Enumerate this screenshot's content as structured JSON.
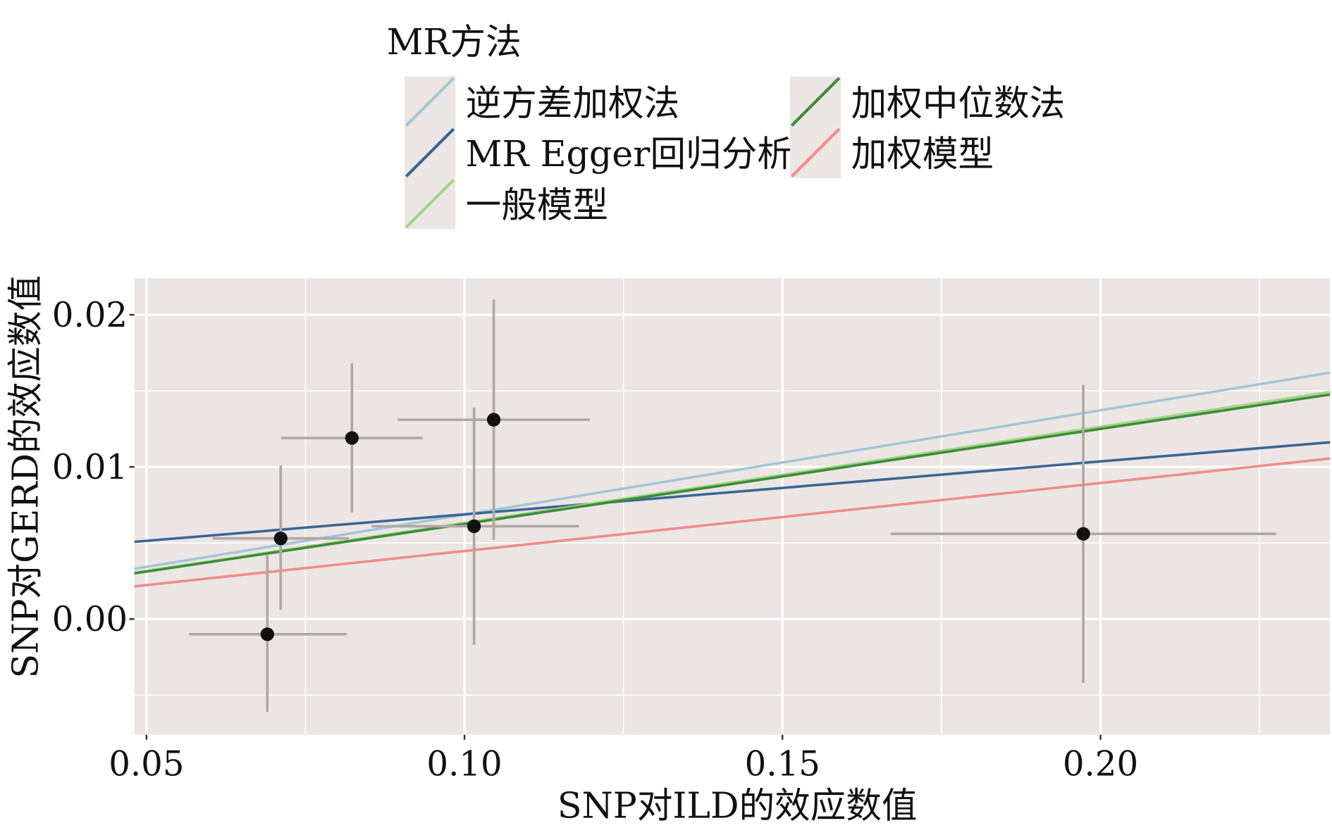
{
  "chart_data": {
    "type": "scatter",
    "title": "",
    "xlabel": "SNP对ILD的效应数值",
    "ylabel": "SNP对GERD的效应数值",
    "xlim": [
      0.0481,
      0.2361
    ],
    "ylim": [
      -0.0076,
      0.0224
    ],
    "xticks": [
      {
        "value": 0.05,
        "label": "0.05"
      },
      {
        "value": 0.1,
        "label": "0.10"
      },
      {
        "value": 0.15,
        "label": "0.15"
      },
      {
        "value": 0.2,
        "label": "0.20"
      }
    ],
    "yticks": [
      {
        "value": 0.0,
        "label": "0.00"
      },
      {
        "value": 0.01,
        "label": "0.01"
      },
      {
        "value": 0.02,
        "label": "0.02"
      }
    ],
    "minor_x": [
      0.075,
      0.125,
      0.175,
      0.225
    ],
    "minor_y": [
      -0.005,
      0.005,
      0.015
    ],
    "grid": true,
    "points": [
      {
        "x": 0.069,
        "y": -0.001,
        "xmin": 0.0567,
        "xmax": 0.0815,
        "ymin": -0.0061,
        "ymax": 0.0042
      },
      {
        "x": 0.0711,
        "y": 0.0053,
        "xmin": 0.0604,
        "xmax": 0.0818,
        "ymin": 0.0006,
        "ymax": 0.0101
      },
      {
        "x": 0.0823,
        "y": 0.0119,
        "xmin": 0.0712,
        "xmax": 0.0934,
        "ymin": 0.007,
        "ymax": 0.0168
      },
      {
        "x": 0.1015,
        "y": 0.0061,
        "xmin": 0.0854,
        "xmax": 0.118,
        "ymin": -0.0017,
        "ymax": 0.0139
      },
      {
        "x": 0.1046,
        "y": 0.0131,
        "xmin": 0.0895,
        "xmax": 0.1197,
        "ymin": 0.0052,
        "ymax": 0.021
      },
      {
        "x": 0.1973,
        "y": 0.0056,
        "xmin": 0.167,
        "xmax": 0.2276,
        "ymin": -0.0042,
        "ymax": 0.0154
      }
    ],
    "legend": {
      "title": "MR方法",
      "placement": "top",
      "items": [
        {
          "label": "逆方差加权法",
          "color": "#a3c6d6",
          "slope": 0.0686,
          "intercept": 0.0
        },
        {
          "label": "MR Egger回归分析",
          "color": "#3a6796",
          "slope": 0.0348,
          "intercept": 0.0034
        },
        {
          "label": "一般模型",
          "color": "#a4d48a",
          "slope": 0.0632,
          "intercept": 0.0
        },
        {
          "label": "加权中位数法",
          "color": "#3b8e37",
          "slope": 0.0625,
          "intercept": 0.0
        },
        {
          "label": "加权模型",
          "color": "#f08c8c",
          "slope": 0.0447,
          "intercept": 0.0
        }
      ]
    }
  }
}
